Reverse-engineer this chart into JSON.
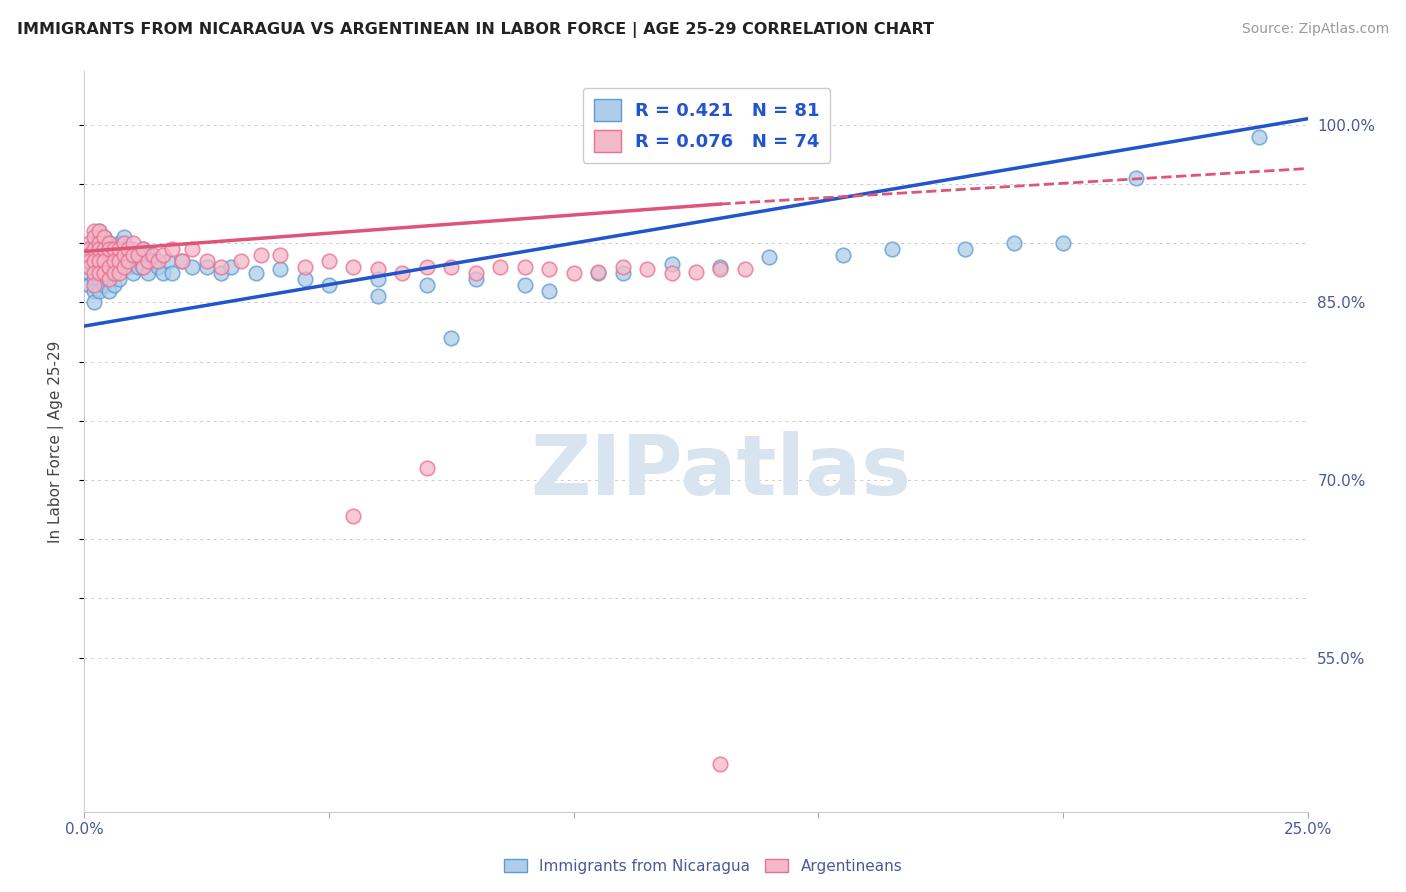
{
  "title": "IMMIGRANTS FROM NICARAGUA VS ARGENTINEAN IN LABOR FORCE | AGE 25-29 CORRELATION CHART",
  "source": "Source: ZipAtlas.com",
  "ylabel": "In Labor Force | Age 25-29",
  "xlim": [
    0.0,
    0.25
  ],
  "ylim": [
    0.42,
    1.045
  ],
  "legend1_label": "R = 0.421   N = 81",
  "legend2_label": "R = 0.076   N = 74",
  "legend_color1": "#aecde8",
  "legend_color2": "#f4b8c8",
  "blue_marker_face": "#aecde8",
  "blue_marker_edge": "#5b9bd5",
  "pink_marker_face": "#f4b8c8",
  "pink_marker_edge": "#e87090",
  "trendline_blue": "#2255cc",
  "trendline_pink": "#dd5577",
  "watermark_color": "#d8e4f0",
  "watermark_text": "ZIPatlas",
  "blue_trend": [
    0.0,
    0.25,
    0.83,
    1.005
  ],
  "pink_trend_solid": [
    0.0,
    0.13,
    0.893,
    0.933
  ],
  "pink_trend_dashed": [
    0.13,
    0.25,
    0.933,
    0.963
  ],
  "blue_x": [
    0.001,
    0.001,
    0.001,
    0.001,
    0.002,
    0.002,
    0.002,
    0.002,
    0.002,
    0.002,
    0.003,
    0.003,
    0.003,
    0.003,
    0.003,
    0.003,
    0.004,
    0.004,
    0.004,
    0.004,
    0.004,
    0.005,
    0.005,
    0.005,
    0.005,
    0.005,
    0.006,
    0.006,
    0.006,
    0.006,
    0.007,
    0.007,
    0.007,
    0.007,
    0.008,
    0.008,
    0.008,
    0.009,
    0.009,
    0.01,
    0.01,
    0.01,
    0.011,
    0.011,
    0.012,
    0.012,
    0.013,
    0.013,
    0.014,
    0.015,
    0.016,
    0.017,
    0.018,
    0.02,
    0.022,
    0.025,
    0.028,
    0.03,
    0.035,
    0.04,
    0.045,
    0.05,
    0.06,
    0.07,
    0.08,
    0.09,
    0.105,
    0.12,
    0.14,
    0.165,
    0.19,
    0.215,
    0.24,
    0.06,
    0.075,
    0.095,
    0.11,
    0.13,
    0.155,
    0.18,
    0.2
  ],
  "blue_y": [
    0.895,
    0.885,
    0.875,
    0.865,
    0.9,
    0.89,
    0.88,
    0.87,
    0.86,
    0.85,
    0.91,
    0.9,
    0.89,
    0.88,
    0.87,
    0.86,
    0.905,
    0.895,
    0.885,
    0.875,
    0.865,
    0.9,
    0.89,
    0.88,
    0.87,
    0.86,
    0.895,
    0.885,
    0.875,
    0.865,
    0.9,
    0.89,
    0.88,
    0.87,
    0.905,
    0.895,
    0.885,
    0.89,
    0.88,
    0.895,
    0.885,
    0.875,
    0.89,
    0.88,
    0.895,
    0.88,
    0.89,
    0.875,
    0.885,
    0.88,
    0.875,
    0.885,
    0.875,
    0.885,
    0.88,
    0.88,
    0.875,
    0.88,
    0.875,
    0.878,
    0.87,
    0.865,
    0.87,
    0.865,
    0.87,
    0.865,
    0.875,
    0.882,
    0.888,
    0.895,
    0.9,
    0.955,
    0.99,
    0.855,
    0.82,
    0.86,
    0.875,
    0.88,
    0.89,
    0.895,
    0.9
  ],
  "pink_x": [
    0.001,
    0.001,
    0.001,
    0.001,
    0.001,
    0.002,
    0.002,
    0.002,
    0.002,
    0.002,
    0.002,
    0.003,
    0.003,
    0.003,
    0.003,
    0.003,
    0.004,
    0.004,
    0.004,
    0.004,
    0.005,
    0.005,
    0.005,
    0.005,
    0.006,
    0.006,
    0.006,
    0.007,
    0.007,
    0.007,
    0.008,
    0.008,
    0.008,
    0.009,
    0.009,
    0.01,
    0.01,
    0.011,
    0.012,
    0.012,
    0.013,
    0.014,
    0.015,
    0.016,
    0.018,
    0.02,
    0.022,
    0.025,
    0.028,
    0.032,
    0.036,
    0.04,
    0.045,
    0.05,
    0.055,
    0.06,
    0.065,
    0.07,
    0.08,
    0.09,
    0.1,
    0.11,
    0.12,
    0.13,
    0.075,
    0.085,
    0.095,
    0.105,
    0.115,
    0.125,
    0.135,
    0.055,
    0.07,
    0.13
  ],
  "pink_y": [
    0.9,
    0.895,
    0.89,
    0.885,
    0.88,
    0.91,
    0.905,
    0.895,
    0.885,
    0.875,
    0.865,
    0.91,
    0.9,
    0.895,
    0.885,
    0.875,
    0.905,
    0.895,
    0.885,
    0.875,
    0.9,
    0.895,
    0.88,
    0.87,
    0.895,
    0.885,
    0.875,
    0.895,
    0.885,
    0.875,
    0.9,
    0.89,
    0.88,
    0.895,
    0.885,
    0.9,
    0.89,
    0.89,
    0.895,
    0.88,
    0.885,
    0.89,
    0.885,
    0.89,
    0.895,
    0.885,
    0.895,
    0.885,
    0.88,
    0.885,
    0.89,
    0.89,
    0.88,
    0.885,
    0.88,
    0.878,
    0.875,
    0.88,
    0.875,
    0.88,
    0.875,
    0.88,
    0.875,
    0.878,
    0.88,
    0.88,
    0.878,
    0.876,
    0.878,
    0.876,
    0.878,
    0.67,
    0.71,
    0.46
  ]
}
